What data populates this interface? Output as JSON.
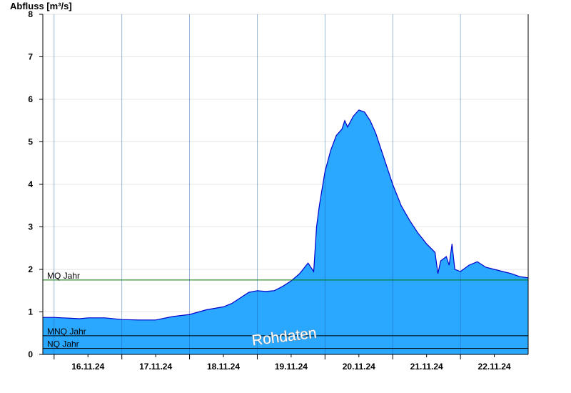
{
  "chart_data": {
    "type": "area",
    "title": "",
    "ylabel": "Abfluss [m³/s]",
    "xlabel": "",
    "ylim": [
      0,
      8
    ],
    "yticks": [
      "0",
      "1",
      "2",
      "3",
      "4",
      "5",
      "6",
      "7",
      "8"
    ],
    "x_tick_labels": [
      "16.11.24",
      "17.11.24",
      "18.11.24",
      "19.11.24",
      "20.11.24",
      "21.11.24",
      "22.11.24"
    ],
    "x_start": "2024-11-15T20:00",
    "x_end": "2024-11-23T00:00",
    "grid": true,
    "fill_color": "#2aa7ff",
    "line_color": "#0000cc",
    "series": [
      {
        "values": [
          [
            "2024-11-15T20:00",
            0.87
          ],
          [
            "2024-11-16T00:00",
            0.87
          ],
          [
            "2024-11-16T03:00",
            0.86
          ],
          [
            "2024-11-16T06:00",
            0.85
          ],
          [
            "2024-11-16T09:00",
            0.84
          ],
          [
            "2024-11-16T12:00",
            0.86
          ],
          [
            "2024-11-16T18:00",
            0.86
          ],
          [
            "2024-11-17T00:00",
            0.82
          ],
          [
            "2024-11-17T06:00",
            0.81
          ],
          [
            "2024-11-17T12:00",
            0.81
          ],
          [
            "2024-11-17T18:00",
            0.89
          ],
          [
            "2024-11-18T00:00",
            0.94
          ],
          [
            "2024-11-18T06:00",
            1.05
          ],
          [
            "2024-11-18T12:00",
            1.12
          ],
          [
            "2024-11-18T15:00",
            1.2
          ],
          [
            "2024-11-18T18:00",
            1.33
          ],
          [
            "2024-11-18T21:00",
            1.46
          ],
          [
            "2024-11-19T00:00",
            1.5
          ],
          [
            "2024-11-19T03:00",
            1.48
          ],
          [
            "2024-11-19T06:00",
            1.5
          ],
          [
            "2024-11-19T09:00",
            1.6
          ],
          [
            "2024-11-19T12:00",
            1.73
          ],
          [
            "2024-11-19T15:00",
            1.9
          ],
          [
            "2024-11-19T18:00",
            2.15
          ],
          [
            "2024-11-19T20:00",
            1.95
          ],
          [
            "2024-11-19T21:00",
            3.0
          ],
          [
            "2024-11-19T22:00",
            3.5
          ],
          [
            "2024-11-20T00:00",
            4.3
          ],
          [
            "2024-11-20T02:00",
            4.8
          ],
          [
            "2024-11-20T04:00",
            5.15
          ],
          [
            "2024-11-20T06:00",
            5.3
          ],
          [
            "2024-11-20T07:00",
            5.5
          ],
          [
            "2024-11-20T08:00",
            5.35
          ],
          [
            "2024-11-20T10:00",
            5.6
          ],
          [
            "2024-11-20T12:00",
            5.75
          ],
          [
            "2024-11-20T14:00",
            5.7
          ],
          [
            "2024-11-20T16:00",
            5.5
          ],
          [
            "2024-11-20T18:00",
            5.2
          ],
          [
            "2024-11-20T20:00",
            4.8
          ],
          [
            "2024-11-21T00:00",
            4.0
          ],
          [
            "2024-11-21T03:00",
            3.5
          ],
          [
            "2024-11-21T06:00",
            3.15
          ],
          [
            "2024-11-21T09:00",
            2.85
          ],
          [
            "2024-11-21T12:00",
            2.6
          ],
          [
            "2024-11-21T15:00",
            2.4
          ],
          [
            "2024-11-21T16:00",
            1.9
          ],
          [
            "2024-11-21T17:00",
            2.2
          ],
          [
            "2024-11-21T19:00",
            2.3
          ],
          [
            "2024-11-21T20:00",
            2.1
          ],
          [
            "2024-11-21T21:00",
            2.6
          ],
          [
            "2024-11-21T22:00",
            2.0
          ],
          [
            "2024-11-22T00:00",
            1.95
          ],
          [
            "2024-11-22T03:00",
            2.1
          ],
          [
            "2024-11-22T06:00",
            2.18
          ],
          [
            "2024-11-22T09:00",
            2.05
          ],
          [
            "2024-11-22T12:00",
            2.0
          ],
          [
            "2024-11-22T15:00",
            1.95
          ],
          [
            "2024-11-22T18:00",
            1.9
          ],
          [
            "2024-11-22T21:00",
            1.83
          ],
          [
            "2024-11-23T00:00",
            1.8
          ]
        ]
      }
    ],
    "reference_lines": [
      {
        "name": "MQ Jahr",
        "value": 1.75,
        "color": "#007700"
      },
      {
        "name": "MNQ Jahr",
        "value": 0.44,
        "color": "#000000"
      },
      {
        "name": "NQ Jahr",
        "value": 0.14,
        "color": "#000000"
      }
    ],
    "watermark": "Rohdaten"
  }
}
